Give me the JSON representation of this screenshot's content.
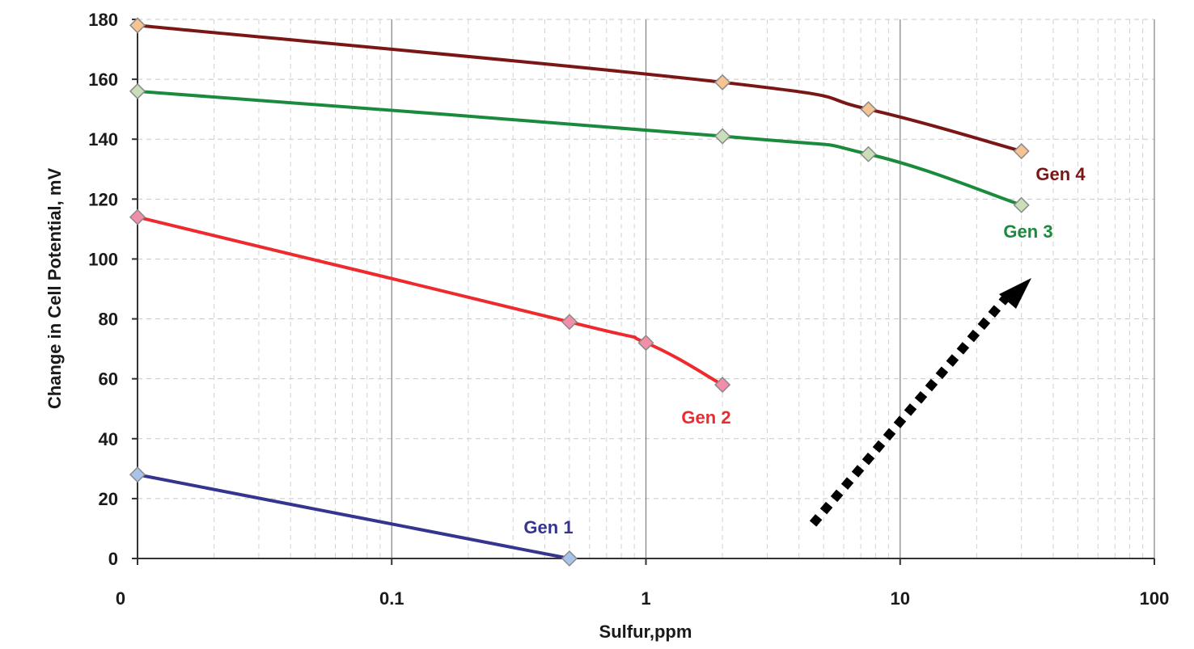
{
  "chart_data": {
    "type": "line",
    "title": "",
    "xlabel": "Sulfur,ppm",
    "ylabel": "Change in Cell Potential, mV",
    "x_scale": "log",
    "xlim": [
      0.01,
      100
    ],
    "ylim": [
      0,
      180
    ],
    "x_tick_values": [
      0.01,
      0.1,
      1,
      10,
      100
    ],
    "x_tick_labels": [
      "0",
      "0.1",
      "1",
      "10",
      "100"
    ],
    "y_ticks": [
      0,
      20,
      40,
      60,
      80,
      100,
      120,
      140,
      160,
      180
    ],
    "grid": true,
    "legend": "none",
    "series": [
      {
        "name": "Gen 1",
        "color": "#35348f",
        "marker_color": "#a9c4ea",
        "points": [
          [
            0.01,
            28
          ],
          [
            0.5,
            0
          ]
        ]
      },
      {
        "name": "Gen 2",
        "color": "#ee2a2e",
        "marker_color": "#f38ea8",
        "points": [
          [
            0.01,
            114
          ],
          [
            0.5,
            79
          ],
          [
            1,
            72
          ],
          [
            2,
            58
          ]
        ]
      },
      {
        "name": "Gen 3",
        "color": "#1a8a3c",
        "marker_color": "#c9dfb9",
        "points": [
          [
            0.01,
            156
          ],
          [
            2,
            141
          ],
          [
            7.5,
            135
          ],
          [
            30,
            118
          ]
        ]
      },
      {
        "name": "Gen 4",
        "color": "#7a1616",
        "marker_color": "#f7c393",
        "points": [
          [
            0.01,
            178
          ],
          [
            2,
            159
          ],
          [
            7.5,
            150
          ],
          [
            30,
            136
          ]
        ]
      }
    ],
    "annotations": [
      {
        "type": "dotted-arrow",
        "color": "#000000"
      }
    ]
  }
}
